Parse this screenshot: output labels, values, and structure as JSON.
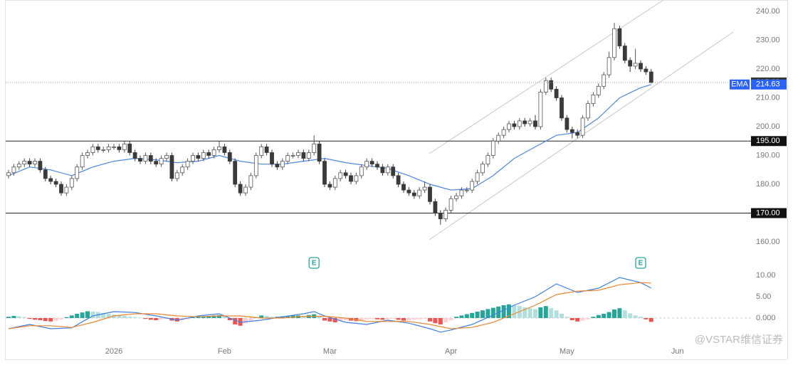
{
  "chart_data": [
    {
      "type": "candlestick",
      "x": [
        0,
        1,
        2,
        3,
        4,
        5,
        6,
        7,
        8,
        9,
        10,
        11,
        12,
        13,
        14,
        15,
        16,
        17,
        18,
        19,
        20,
        21,
        22,
        23,
        24,
        25,
        26,
        27,
        28,
        29,
        30,
        31,
        32,
        33,
        34,
        35,
        36,
        37,
        38,
        39,
        40,
        41,
        42,
        43,
        44,
        45,
        46,
        47,
        48,
        49,
        50,
        51,
        52,
        53,
        54,
        55,
        56,
        57,
        58,
        59,
        60,
        61,
        62,
        63,
        64,
        65,
        66,
        67,
        68,
        69,
        70,
        71,
        72,
        73,
        74,
        75,
        76,
        77,
        78,
        79,
        80,
        81,
        82,
        83,
        84,
        85,
        86,
        87,
        88,
        89,
        90,
        91,
        92,
        93,
        94,
        95,
        96,
        97,
        98,
        99,
        100,
        101,
        102,
        103,
        104,
        105,
        106,
        107,
        108,
        109,
        110,
        111,
        112,
        113,
        114,
        115,
        116,
        117,
        118,
        119,
        120,
        121,
        122
      ],
      "open": [
        183,
        184,
        186,
        187,
        188,
        187,
        188,
        185,
        182,
        181,
        180,
        177,
        179,
        182,
        186,
        190,
        191,
        193,
        192,
        192,
        193,
        193,
        192,
        194,
        191,
        189,
        188,
        190,
        188,
        187,
        189,
        190,
        182,
        184,
        186,
        188,
        190,
        189,
        191,
        190,
        192,
        193,
        191,
        188,
        180,
        177,
        179,
        183,
        190,
        193,
        191,
        187,
        186,
        188,
        190,
        190,
        191,
        189,
        191,
        194,
        188,
        180,
        179,
        182,
        184,
        183,
        181,
        183,
        186,
        188,
        187,
        186,
        184,
        186,
        183,
        180,
        178,
        177,
        176,
        178,
        179,
        174,
        170,
        168,
        171,
        175,
        176,
        178,
        178,
        181,
        184,
        187,
        190,
        195,
        197,
        199,
        201,
        200,
        202,
        201,
        202,
        200,
        212,
        216,
        213,
        210,
        203,
        199,
        198,
        197,
        203,
        208,
        211,
        214,
        218,
        224,
        234,
        228,
        223,
        221,
        222,
        220,
        219
      ],
      "high": [
        185,
        187,
        188,
        189,
        189,
        189,
        189,
        186,
        183,
        182,
        181,
        180,
        183,
        187,
        191,
        192,
        194,
        194,
        193,
        194,
        194,
        194,
        195,
        195,
        192,
        190,
        191,
        191,
        189,
        190,
        191,
        191,
        185,
        187,
        189,
        191,
        191,
        192,
        192,
        193,
        195,
        194,
        192,
        189,
        181,
        180,
        184,
        191,
        194,
        194,
        192,
        188,
        189,
        191,
        191,
        192,
        192,
        192,
        197,
        195,
        189,
        181,
        183,
        185,
        185,
        184,
        184,
        187,
        189,
        189,
        188,
        187,
        187,
        187,
        184,
        181,
        179,
        178,
        179,
        181,
        180,
        175,
        171,
        172,
        176,
        177,
        179,
        179,
        182,
        185,
        188,
        191,
        196,
        198,
        200,
        202,
        202,
        203,
        203,
        203,
        204,
        213,
        217,
        217,
        214,
        211,
        204,
        200,
        199,
        204,
        209,
        212,
        215,
        219,
        226,
        236,
        235,
        229,
        224,
        227,
        223,
        221,
        220
      ],
      "low": [
        182,
        183,
        185,
        186,
        186,
        186,
        184,
        181,
        180,
        179,
        176,
        176,
        178,
        181,
        185,
        189,
        190,
        191,
        191,
        191,
        192,
        191,
        191,
        190,
        188,
        187,
        187,
        187,
        186,
        186,
        188,
        181,
        181,
        183,
        185,
        187,
        188,
        188,
        189,
        189,
        191,
        190,
        187,
        179,
        176,
        176,
        178,
        182,
        189,
        190,
        186,
        185,
        185,
        187,
        189,
        189,
        188,
        188,
        190,
        187,
        179,
        178,
        178,
        181,
        182,
        180,
        180,
        182,
        185,
        186,
        185,
        183,
        183,
        182,
        179,
        177,
        176,
        175,
        175,
        177,
        173,
        169,
        166,
        167,
        170,
        174,
        175,
        177,
        177,
        180,
        183,
        186,
        189,
        194,
        196,
        198,
        199,
        199,
        200,
        200,
        199,
        199,
        211,
        212,
        209,
        202,
        198,
        196,
        196,
        196,
        202,
        207,
        210,
        213,
        217,
        223,
        227,
        222,
        219,
        220,
        219,
        218,
        215
      ],
      "close": [
        184,
        186,
        187,
        188,
        187,
        188,
        185,
        182,
        181,
        180,
        177,
        179,
        182,
        186,
        190,
        191,
        193,
        192,
        192,
        193,
        193,
        192,
        194,
        191,
        189,
        188,
        190,
        188,
        187,
        189,
        190,
        182,
        184,
        186,
        188,
        190,
        189,
        191,
        190,
        192,
        193,
        191,
        188,
        180,
        177,
        179,
        183,
        190,
        193,
        191,
        187,
        186,
        188,
        190,
        190,
        191,
        189,
        191,
        194,
        188,
        180,
        179,
        182,
        184,
        183,
        181,
        183,
        186,
        188,
        187,
        186,
        184,
        186,
        183,
        180,
        178,
        177,
        176,
        178,
        179,
        174,
        170,
        168,
        171,
        175,
        176,
        178,
        178,
        181,
        184,
        187,
        190,
        195,
        197,
        199,
        201,
        200,
        202,
        201,
        202,
        200,
        212,
        216,
        213,
        210,
        203,
        199,
        198,
        197,
        203,
        208,
        211,
        214,
        218,
        224,
        234,
        228,
        223,
        221,
        222,
        220,
        219,
        215.33
      ],
      "up_color": "#ffffff",
      "down_color": "#3a3a3a",
      "edge_color": "#555555",
      "xlim": [
        0,
        140
      ],
      "xticks": [
        {
          "value": 20,
          "label": "2026"
        },
        {
          "value": 41,
          "label": "Feb"
        },
        {
          "value": 61,
          "label": "Mar"
        },
        {
          "value": 84,
          "label": "Apr"
        },
        {
          "value": 106,
          "label": "May"
        },
        {
          "value": 127,
          "label": "Jun"
        }
      ],
      "ylim": [
        156.3,
        243.95
      ],
      "yticks": [
        {
          "value": 160,
          "label": "160.00"
        },
        {
          "value": 170,
          "label": "170.00"
        },
        {
          "value": 180,
          "label": "180.00"
        },
        {
          "value": 190,
          "label": "190.00"
        },
        {
          "value": 200,
          "label": "200.00"
        },
        {
          "value": 210,
          "label": "210.00"
        },
        {
          "value": 220,
          "label": "220.00"
        },
        {
          "value": 230,
          "label": "230.00"
        },
        {
          "value": 240,
          "label": "240.00"
        }
      ],
      "levels": [
        {
          "value": 195,
          "label": "195.00"
        },
        {
          "value": 170,
          "label": "170.00"
        }
      ],
      "ema": {
        "name": "EMA",
        "color": "#4a86e8",
        "x": [
          0,
          4,
          8,
          12,
          16,
          20,
          24,
          28,
          32,
          36,
          40,
          44,
          48,
          52,
          56,
          60,
          64,
          68,
          72,
          76,
          80,
          84,
          88,
          92,
          96,
          100,
          104,
          108,
          112,
          116,
          120,
          122
        ],
        "values": [
          183,
          186,
          185,
          183,
          186,
          188,
          189,
          188.5,
          187.5,
          188,
          190,
          188,
          187,
          187,
          188,
          189,
          187.5,
          186.5,
          185.5,
          183,
          180,
          178,
          178.5,
          183,
          189,
          193,
          197,
          198,
          203,
          210,
          213.5,
          214.63
        ]
      },
      "events": [
        {
          "x": 58,
          "label": "E"
        },
        {
          "x": 120,
          "label": "E"
        }
      ],
      "watermark": "@VSTAR维信证券"
    },
    {
      "type": "macd",
      "xlim": [
        0,
        140
      ],
      "ylim": [
        -5.5,
        13.7
      ],
      "yticks": [
        {
          "value": 0,
          "label": "0.000"
        },
        {
          "value": 5,
          "label": "5.00"
        },
        {
          "value": 10,
          "label": "10.00"
        }
      ],
      "x": [
        0,
        1,
        2,
        3,
        4,
        5,
        6,
        7,
        8,
        9,
        10,
        11,
        12,
        13,
        14,
        15,
        16,
        17,
        18,
        19,
        20,
        21,
        22,
        23,
        24,
        25,
        26,
        27,
        28,
        29,
        30,
        31,
        32,
        33,
        34,
        35,
        36,
        37,
        38,
        39,
        40,
        41,
        42,
        43,
        44,
        45,
        46,
        47,
        48,
        49,
        50,
        51,
        52,
        53,
        54,
        55,
        56,
        57,
        58,
        59,
        60,
        61,
        62,
        63,
        64,
        65,
        66,
        67,
        68,
        69,
        70,
        71,
        72,
        73,
        74,
        75,
        76,
        77,
        78,
        79,
        80,
        81,
        82,
        83,
        84,
        85,
        86,
        87,
        88,
        89,
        90,
        91,
        92,
        93,
        94,
        95,
        96,
        97,
        98,
        99,
        100,
        101,
        102,
        103,
        104,
        105,
        106,
        107,
        108,
        109,
        110,
        111,
        112,
        113,
        114,
        115,
        116,
        117,
        118,
        119,
        120,
        121,
        122
      ],
      "histogram": [
        0.3,
        0.5,
        0.4,
        0.2,
        -0.2,
        -0.4,
        -0.5,
        -0.7,
        -0.8,
        -0.6,
        -0.3,
        0.2,
        0.6,
        1,
        1.3,
        1.6,
        1.5,
        1.4,
        1.2,
        1,
        0.8,
        0.6,
        0.5,
        0.3,
        0.2,
        0.1,
        -0.2,
        -0.4,
        -0.5,
        -0.3,
        -0.2,
        -0.6,
        -0.8,
        -0.5,
        -0.3,
        0.2,
        0.3,
        0.4,
        0.5,
        0.6,
        0.7,
        0.5,
        -0.5,
        -1.5,
        -1.8,
        -1.2,
        -0.6,
        0.2,
        0.6,
        0.5,
        0.3,
        0.3,
        0.4,
        0.5,
        0.6,
        0.6,
        0.5,
        0.7,
        0.9,
        0.4,
        -0.6,
        -0.8,
        -1,
        -0.7,
        -0.5,
        -0.6,
        -0.7,
        -0.5,
        -0.3,
        -0.2,
        -0.3,
        -0.4,
        -0.3,
        -0.2,
        -0.4,
        -0.6,
        -0.5,
        -0.4,
        -0.3,
        -0.2,
        -0.8,
        -1.2,
        -1.5,
        -1,
        -0.5,
        0.3,
        0.6,
        0.9,
        1.2,
        1.5,
        1.8,
        2.1,
        2.4,
        2.7,
        3,
        3.2,
        3,
        2.8,
        2.5,
        2.3,
        2.1,
        2.5,
        2.8,
        2.3,
        1.8,
        1,
        0.3,
        -0.5,
        -0.8,
        -0.6,
        -0.3,
        0.3,
        0.7,
        1,
        1.4,
        2,
        2.3,
        1.8,
        1.1,
        0.6,
        0.3,
        -0.3,
        -0.9
      ],
      "hist_colors": [
        "#26a69a",
        "#b2dfdb",
        "#ef5350",
        "#ffcdd2"
      ],
      "series": [
        {
          "color": "#3d7fe8",
          "x": [
            0,
            4,
            8,
            12,
            16,
            20,
            24,
            28,
            32,
            36,
            40,
            44,
            48,
            52,
            56,
            58,
            60,
            64,
            68,
            72,
            76,
            80,
            82,
            84,
            88,
            92,
            96,
            100,
            104,
            108,
            112,
            116,
            120,
            122
          ],
          "values": [
            -2.5,
            -1.5,
            -2.5,
            -2.3,
            0.5,
            1.5,
            1.3,
            0.5,
            -0.5,
            0.5,
            1,
            -1,
            -0.5,
            0.3,
            1,
            1.5,
            0.5,
            -1,
            -1.5,
            -0.5,
            -1.2,
            -2.5,
            -3.3,
            -2.8,
            -1.5,
            0.7,
            3,
            5,
            8,
            6,
            7,
            9.5,
            8.3,
            7
          ]
        },
        {
          "color": "#f0842c",
          "x": [
            0,
            4,
            8,
            12,
            16,
            20,
            24,
            28,
            32,
            36,
            40,
            44,
            48,
            52,
            56,
            60,
            64,
            68,
            72,
            76,
            80,
            84,
            88,
            92,
            96,
            100,
            104,
            108,
            112,
            116,
            120,
            122
          ],
          "values": [
            -2.5,
            -1.8,
            -1.8,
            -2.2,
            -1,
            0.5,
            1,
            1,
            0.5,
            0.3,
            0.5,
            0.5,
            0,
            0,
            0.4,
            0.4,
            0,
            -0.8,
            -0.8,
            -0.8,
            -1.5,
            -2.5,
            -2.2,
            -1,
            1,
            3,
            5.5,
            6.3,
            6.5,
            7.8,
            8.3,
            8.2
          ]
        }
      ]
    }
  ]
}
